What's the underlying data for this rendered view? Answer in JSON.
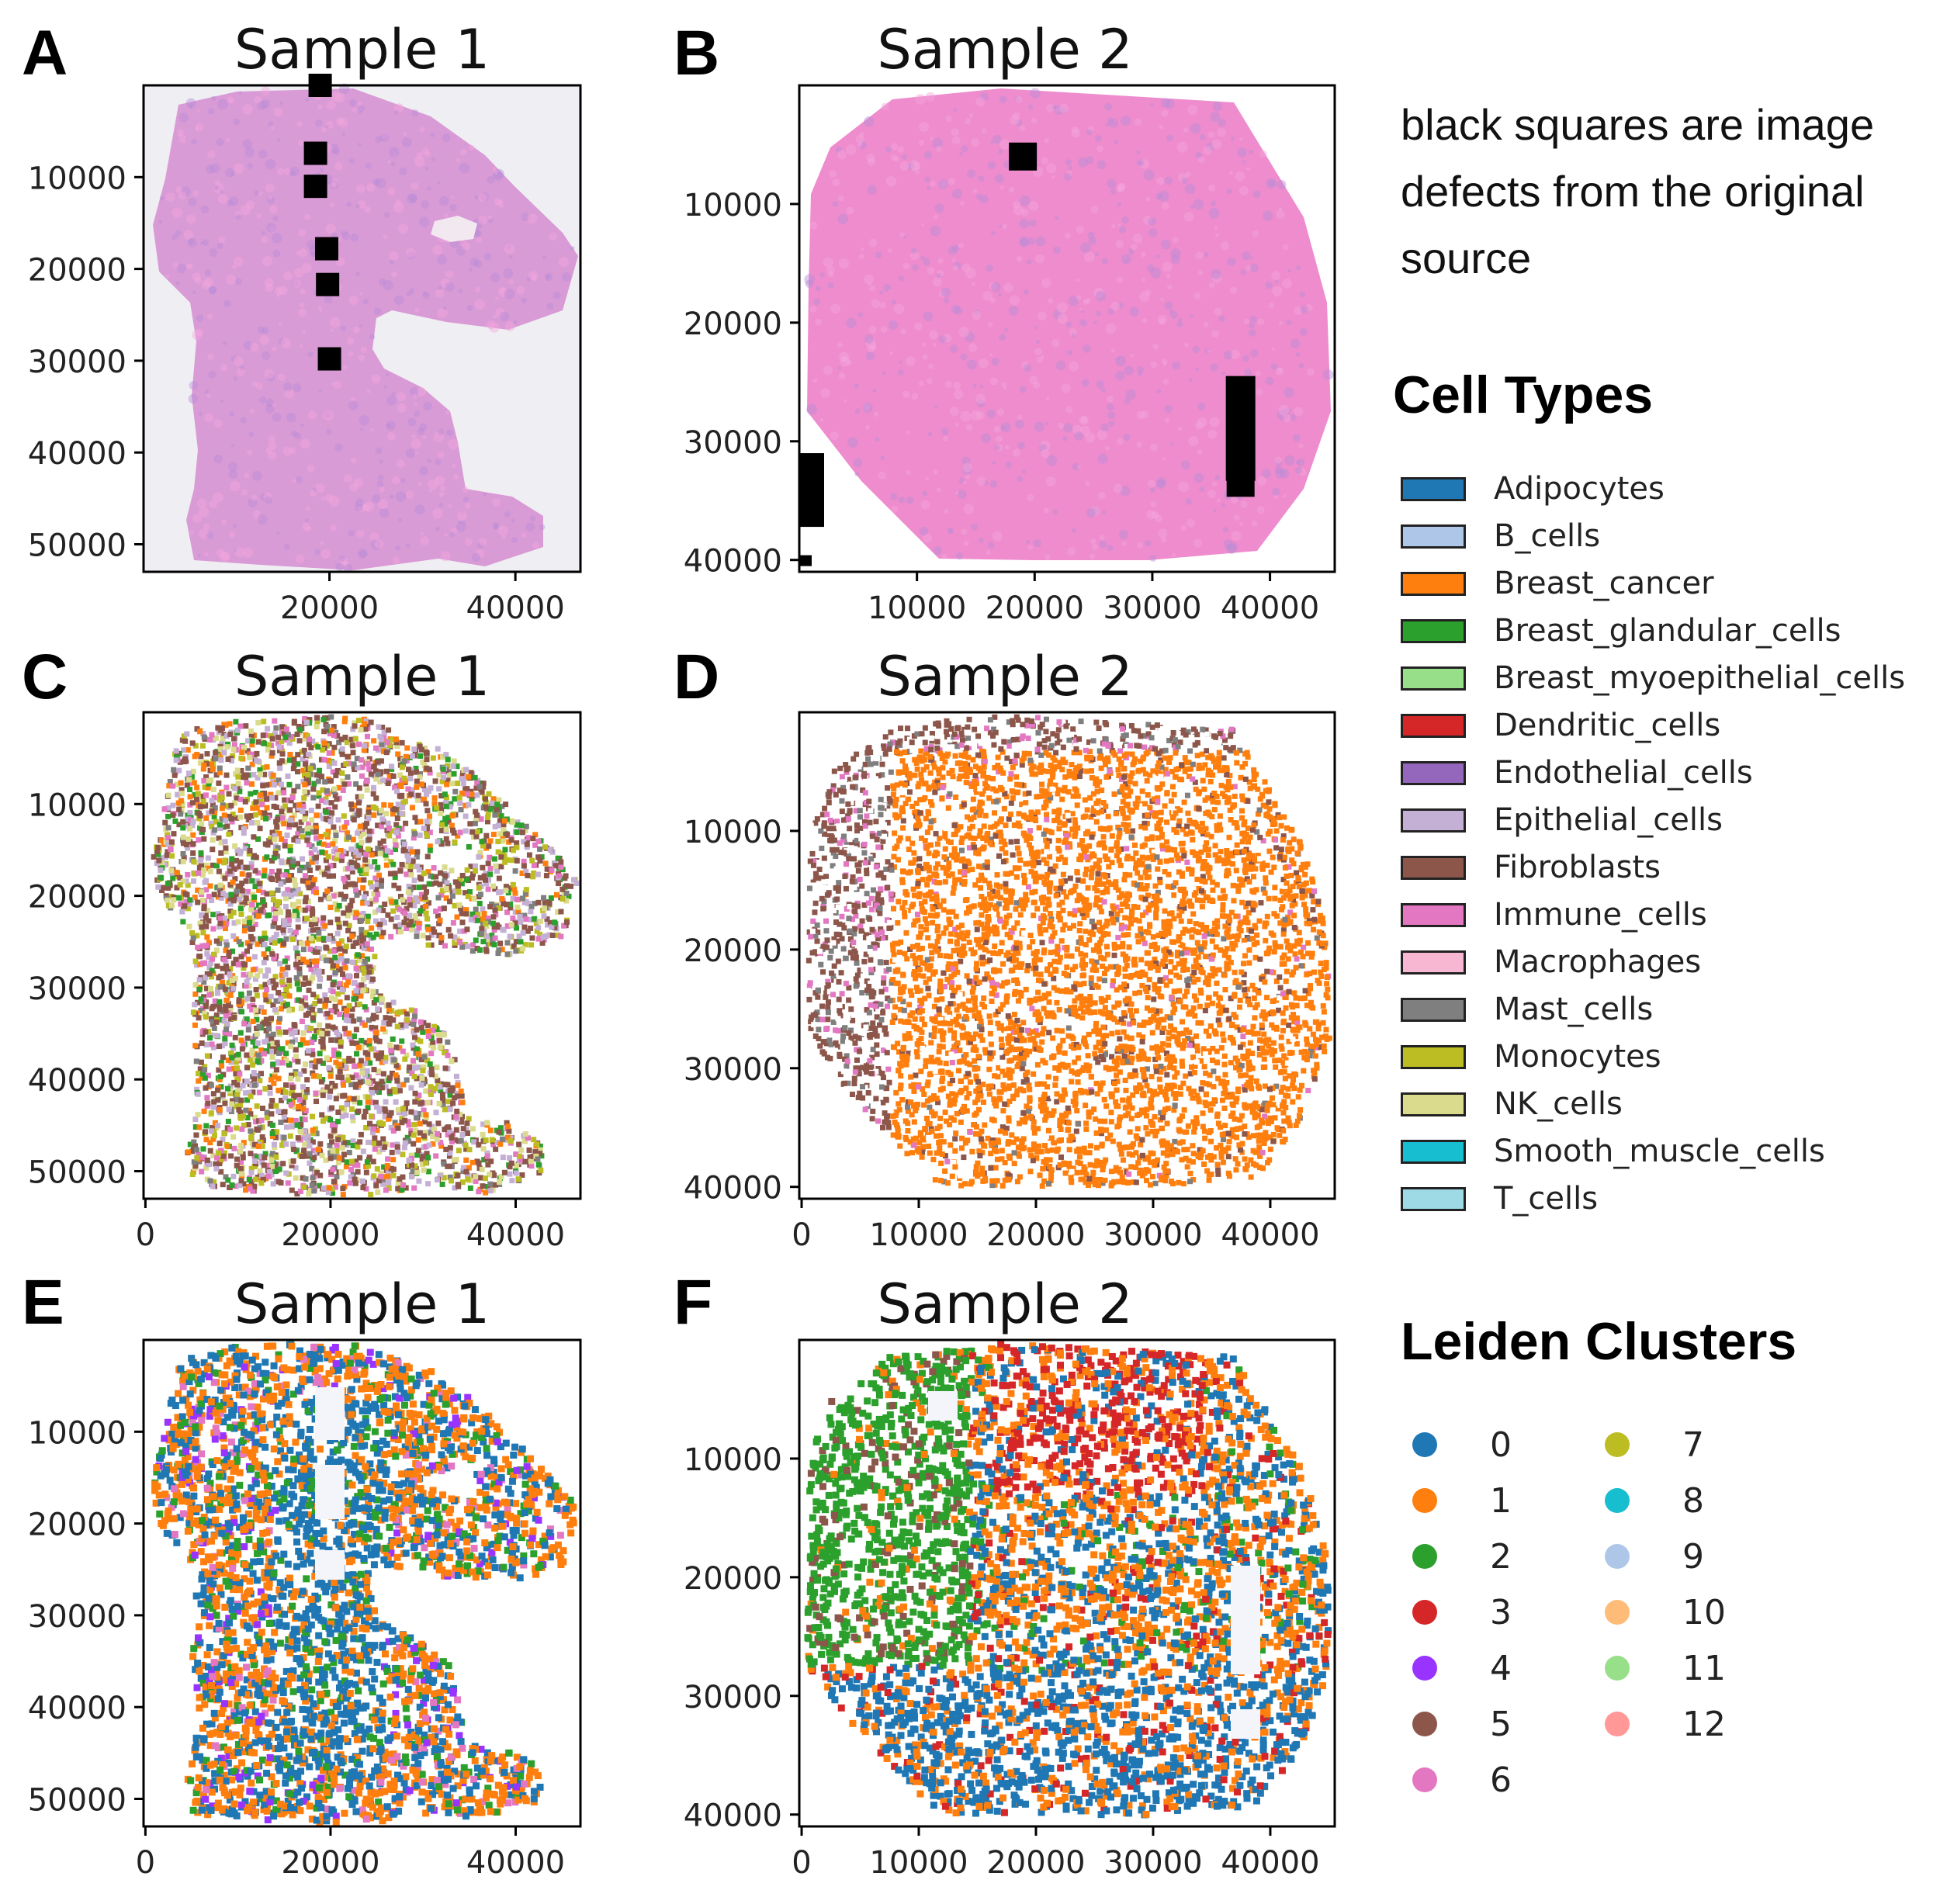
{
  "note": "black squares are image defects from the original source",
  "legends": {
    "cell_types": {
      "title": "Cell Types",
      "items": [
        {
          "label": "Adipocytes",
          "color": "#1f77b4"
        },
        {
          "label": "B_cells",
          "color": "#aec7e8"
        },
        {
          "label": "Breast_cancer",
          "color": "#ff7f0e"
        },
        {
          "label": "Breast_glandular_cells",
          "color": "#2ca02c"
        },
        {
          "label": "Breast_myoepithelial_cells",
          "color": "#98df8a"
        },
        {
          "label": "Dendritic_cells",
          "color": "#d62728"
        },
        {
          "label": "Endothelial_cells",
          "color": "#9467bd"
        },
        {
          "label": "Epithelial_cells",
          "color": "#c5b0d5"
        },
        {
          "label": "Fibroblasts",
          "color": "#8c564b"
        },
        {
          "label": "Immune_cells",
          "color": "#e377c2"
        },
        {
          "label": "Macrophages",
          "color": "#f7b6d2"
        },
        {
          "label": "Mast_cells",
          "color": "#7f7f7f"
        },
        {
          "label": "Monocytes",
          "color": "#bcbd22"
        },
        {
          "label": "NK_cells",
          "color": "#dbdb8d"
        },
        {
          "label": "Smooth_muscle_cells",
          "color": "#17becf"
        },
        {
          "label": "T_cells",
          "color": "#9edae5"
        }
      ]
    },
    "leiden_clusters": {
      "title": "Leiden Clusters",
      "items": [
        {
          "label": "0",
          "color": "#1f77b4"
        },
        {
          "label": "1",
          "color": "#ff7f0e"
        },
        {
          "label": "2",
          "color": "#2ca02c"
        },
        {
          "label": "3",
          "color": "#d62728"
        },
        {
          "label": "4",
          "color": "#9933ff"
        },
        {
          "label": "5",
          "color": "#8c564b"
        },
        {
          "label": "6",
          "color": "#e377c2"
        },
        {
          "label": "7",
          "color": "#bcbd22"
        },
        {
          "label": "8",
          "color": "#17becf"
        },
        {
          "label": "9",
          "color": "#aec7e8"
        },
        {
          "label": "10",
          "color": "#ffbb78"
        },
        {
          "label": "11",
          "color": "#98df8a"
        },
        {
          "label": "12",
          "color": "#ff9896"
        }
      ]
    }
  },
  "chart_data": [
    {
      "panel": "A",
      "type": "image",
      "title": "Sample 1",
      "content": "H&E tissue image",
      "xlim": [
        0,
        47000
      ],
      "ylim": [
        53000,
        0
      ],
      "xticks": [
        "20000",
        "40000"
      ],
      "yticks": [
        "10000",
        "20000",
        "30000",
        "40000",
        "50000"
      ],
      "ytick_values": [
        10000,
        20000,
        30000,
        40000,
        50000
      ],
      "tissue_color": "#d99bd6",
      "background": "#efeef2",
      "defects": [
        [
          19000,
          0
        ],
        [
          18500,
          7400
        ],
        [
          18500,
          11000
        ],
        [
          19700,
          17800
        ],
        [
          19800,
          21700
        ],
        [
          20000,
          29800
        ]
      ]
    },
    {
      "panel": "B",
      "type": "image",
      "title": "Sample 2",
      "content": "H&E tissue image",
      "xlim": [
        0,
        45500
      ],
      "ylim": [
        41000,
        0
      ],
      "xticks": [
        "10000",
        "20000",
        "30000",
        "40000"
      ],
      "xtick_values": [
        10000,
        20000,
        30000,
        40000
      ],
      "yticks": [
        "10000",
        "20000",
        "30000",
        "40000"
      ],
      "ytick_values": [
        10000,
        20000,
        30000,
        40000
      ],
      "tissue_color": "#ee8ccd",
      "background": "#ffffff",
      "defects": [
        [
          19000,
          6000
        ],
        [
          37500,
          24500
        ],
        [
          37500,
          33500
        ]
      ]
    },
    {
      "panel": "C",
      "type": "scatter",
      "title": "Sample 1",
      "color_by": "Cell Types",
      "xlim": [
        -200,
        47000
      ],
      "ylim": [
        53000,
        0
      ],
      "xticks": [
        "0",
        "20000",
        "40000"
      ],
      "xtick_values": [
        0,
        20000,
        40000
      ],
      "yticks": [
        "10000",
        "20000",
        "30000",
        "40000",
        "50000"
      ],
      "ytick_values": [
        10000,
        20000,
        30000,
        40000,
        50000
      ]
    },
    {
      "panel": "D",
      "type": "scatter",
      "title": "Sample 2",
      "color_by": "Cell Types",
      "xlim": [
        -200,
        45500
      ],
      "ylim": [
        41000,
        0
      ],
      "xticks": [
        "0",
        "10000",
        "20000",
        "30000",
        "40000"
      ],
      "xtick_values": [
        0,
        10000,
        20000,
        30000,
        40000
      ],
      "yticks": [
        "10000",
        "20000",
        "30000",
        "40000"
      ],
      "ytick_values": [
        10000,
        20000,
        30000,
        40000
      ]
    },
    {
      "panel": "E",
      "type": "scatter",
      "title": "Sample 1",
      "color_by": "Leiden Clusters",
      "xlim": [
        -200,
        47000
      ],
      "ylim": [
        53000,
        0
      ],
      "xticks": [
        "0",
        "20000",
        "40000"
      ],
      "xtick_values": [
        0,
        20000,
        40000
      ],
      "yticks": [
        "10000",
        "20000",
        "30000",
        "40000",
        "50000"
      ],
      "ytick_values": [
        10000,
        20000,
        30000,
        40000,
        50000
      ]
    },
    {
      "panel": "F",
      "type": "scatter",
      "title": "Sample 2",
      "color_by": "Leiden Clusters",
      "xlim": [
        -200,
        45500
      ],
      "ylim": [
        41000,
        0
      ],
      "xticks": [
        "0",
        "10000",
        "20000",
        "30000",
        "40000"
      ],
      "xtick_values": [
        0,
        10000,
        20000,
        30000,
        40000
      ],
      "yticks": [
        "10000",
        "20000",
        "30000",
        "40000"
      ],
      "ytick_values": [
        10000,
        20000,
        30000,
        40000
      ]
    }
  ]
}
